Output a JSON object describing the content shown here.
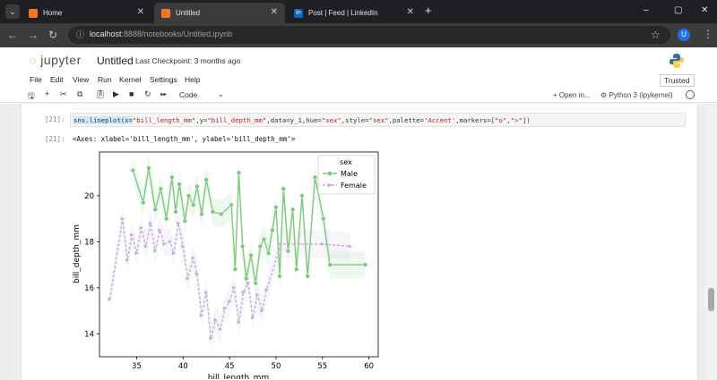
{
  "browser": {
    "tabs": [
      {
        "label": "Home",
        "icon": "jupyter-favicon-icon",
        "active": false
      },
      {
        "label": "Untitled",
        "icon": "jupyter-favicon-icon",
        "active": true
      },
      {
        "label": "Post | Feed | LinkedIn",
        "icon": "linkedin-icon",
        "active": false
      }
    ],
    "url_host": "localhost",
    "url_path": ":8888/notebooks/Untitled.ipynb",
    "profile_initial": "U",
    "window_controls": [
      "–",
      "▢",
      "✕"
    ]
  },
  "jupyter": {
    "logo_text": "jupyter",
    "notebook_title": "Untitled",
    "checkpoint": "Last Checkpoint: 3 months ago",
    "menu": [
      "File",
      "Edit",
      "View",
      "Run",
      "Kernel",
      "Settings",
      "Help"
    ],
    "trusted": "Trusted",
    "cell_type": "Code",
    "open_in": "+ Open in...",
    "kernel": "Python 3 (ipykernel)"
  },
  "cell": {
    "in_prompt": "[21]:",
    "code_prefix": "sns.lineplot(x=",
    "code_full": "sns.lineplot(x=\"bill_length_mm\",y=\"bill_depth_mm\",data=y_1,hue=\"sex\",style=\"sex\",palette='Accent',markers=[\"o\",\">\"])",
    "out_prompt": "[21]:",
    "output_text": "<Axes: xlabel='bill_length_mm', ylabel='bill_depth_mm'>"
  },
  "chart_data": {
    "type": "line",
    "xlabel": "bill_length_mm",
    "ylabel": "bill_depth_mm",
    "xlim": [
      31,
      61
    ],
    "ylim": [
      13,
      21.9
    ],
    "xticks": [
      35,
      40,
      45,
      50,
      55,
      60
    ],
    "yticks": [
      14,
      16,
      18,
      20
    ],
    "legend": {
      "title": "sex",
      "placement": "top-right"
    },
    "colors": {
      "Male": "#7fc97f",
      "Female": "#beaed4"
    },
    "series": [
      {
        "name": "Male",
        "marker": "o",
        "style": "solid",
        "x": [
          34.6,
          35.7,
          36.3,
          37.0,
          37.6,
          38.2,
          38.8,
          39.2,
          39.6,
          40.2,
          40.6,
          41.1,
          41.5,
          42.0,
          42.5,
          43.2,
          44.1,
          45.2,
          45.6,
          46.0,
          46.4,
          46.8,
          47.3,
          47.8,
          48.3,
          48.7,
          49.2,
          49.6,
          50.0,
          50.4,
          50.8,
          51.3,
          51.8,
          52.2,
          52.8,
          53.4,
          54.2,
          55.1,
          55.8,
          59.6
        ],
        "y": [
          21.1,
          19.7,
          21.2,
          19.4,
          20.3,
          19.0,
          20.8,
          19.3,
          20.5,
          18.9,
          20.0,
          19.6,
          20.4,
          19.2,
          20.7,
          19.3,
          19.2,
          19.6,
          16.8,
          21.0,
          17.8,
          16.4,
          17.4,
          16.2,
          17.8,
          18.1,
          17.5,
          18.5,
          19.5,
          16.5,
          20.3,
          17.6,
          19.4,
          16.8,
          20.0,
          16.5,
          20.8,
          19.0,
          17.0,
          17.0
        ]
      },
      {
        "name": "Female",
        "marker": ">",
        "style": "dashed",
        "x": [
          32.1,
          33.5,
          34.0,
          34.5,
          35.0,
          35.5,
          36.0,
          36.5,
          37.0,
          37.5,
          38.0,
          38.6,
          39.0,
          39.5,
          40.0,
          40.5,
          41.1,
          41.5,
          42.0,
          42.5,
          43.0,
          43.5,
          44.0,
          44.5,
          45.0,
          45.5,
          46.0,
          46.5,
          47.0,
          47.5,
          48.0,
          48.5,
          49.0,
          50.5,
          52.5,
          55.0,
          58.0
        ],
        "y": [
          15.5,
          19.0,
          17.2,
          18.3,
          17.5,
          18.6,
          17.8,
          18.8,
          17.6,
          18.5,
          17.9,
          18.0,
          17.5,
          18.8,
          17.8,
          16.4,
          17.3,
          16.6,
          14.8,
          15.8,
          13.8,
          14.6,
          14.2,
          15.1,
          15.4,
          16.0,
          14.5,
          15.8,
          16.2,
          14.7,
          15.7,
          15.0,
          15.9,
          17.9,
          17.9,
          17.9,
          17.8
        ]
      }
    ]
  }
}
